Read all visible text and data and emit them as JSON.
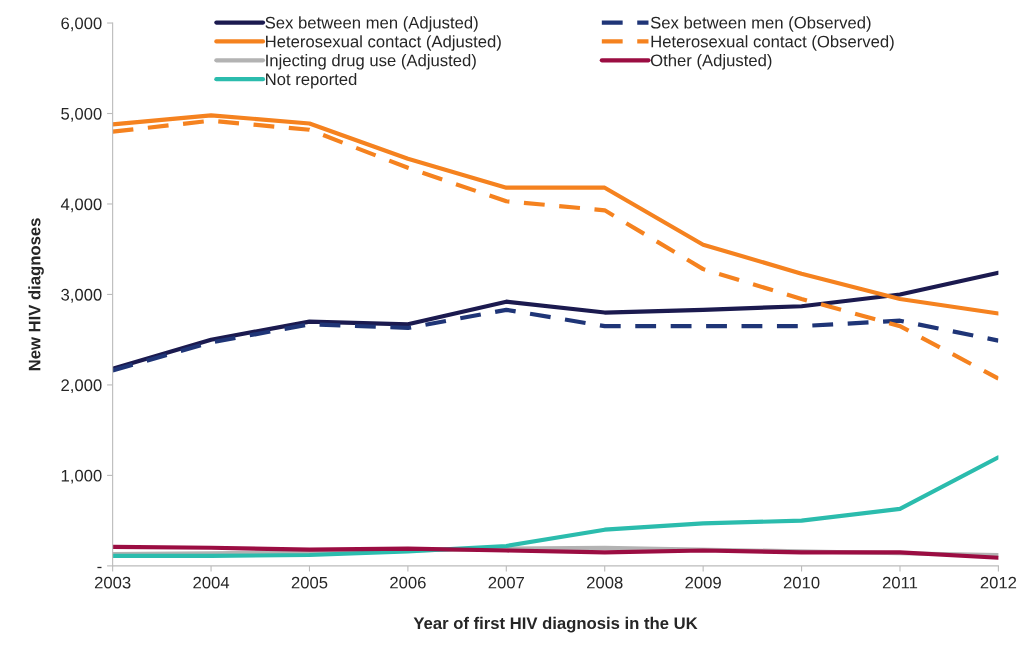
{
  "chart_data": {
    "type": "line",
    "xlabel": "Year of first HIV diagnosis in the UK",
    "ylabel": "New HIV diagnoses",
    "x": [
      2003,
      2004,
      2005,
      2006,
      2007,
      2008,
      2009,
      2010,
      2011,
      2012
    ],
    "xlim": [
      2003,
      2012
    ],
    "xticks": [
      2003,
      2004,
      2005,
      2006,
      2007,
      2008,
      2009,
      2010,
      2011,
      2012
    ],
    "ylim": [
      0,
      6000
    ],
    "yticks": [
      {
        "value": 0,
        "label": "-"
      },
      {
        "value": 1000,
        "label": "1,000"
      },
      {
        "value": 2000,
        "label": "2,000"
      },
      {
        "value": 3000,
        "label": "3,000"
      },
      {
        "value": 4000,
        "label": "4,000"
      },
      {
        "value": 5000,
        "label": "5,000"
      },
      {
        "value": 6000,
        "label": "6,000"
      }
    ],
    "grid": false,
    "legend": "top",
    "marker": "none",
    "series": [
      {
        "name": "Sex between men (Adjusted)",
        "color": "#1b1a4f",
        "line_style": "solid",
        "values": [
          2180,
          2500,
          2700,
          2670,
          2920,
          2800,
          2830,
          2870,
          3000,
          3240
        ]
      },
      {
        "name": "Heterosexual contact (Adjusted)",
        "color": "#f5821f",
        "line_style": "solid",
        "values": [
          4880,
          4980,
          4890,
          4500,
          4180,
          4180,
          3550,
          3230,
          2950,
          2790
        ]
      },
      {
        "name": "Injecting drug use (Adjusted)",
        "color": "#b3b3b3",
        "line_style": "solid",
        "values": [
          130,
          140,
          150,
          170,
          190,
          200,
          null,
          null,
          140,
          120
        ]
      },
      {
        "name": "Not reported",
        "color": "#2bbcad",
        "line_style": "solid",
        "values": [
          110,
          110,
          120,
          160,
          220,
          400,
          470,
          500,
          630,
          1200
        ]
      },
      {
        "name": "Sex between men (Observed)",
        "color": "#1f3577",
        "line_style": "dashed",
        "values": [
          2160,
          2470,
          2670,
          2630,
          2830,
          2650,
          2650,
          2650,
          2710,
          2490
        ]
      },
      {
        "name": "Heterosexual contact (Observed)",
        "color": "#f5821f",
        "line_style": "dashed",
        "values": [
          4800,
          4920,
          4820,
          4400,
          4030,
          3930,
          3280,
          2950,
          2650,
          2070
        ]
      },
      {
        "name": "Other (Adjusted)",
        "color": "#9b0d42",
        "line_style": "solid",
        "values": [
          210,
          200,
          180,
          190,
          170,
          150,
          170,
          150,
          150,
          90
        ]
      }
    ]
  }
}
